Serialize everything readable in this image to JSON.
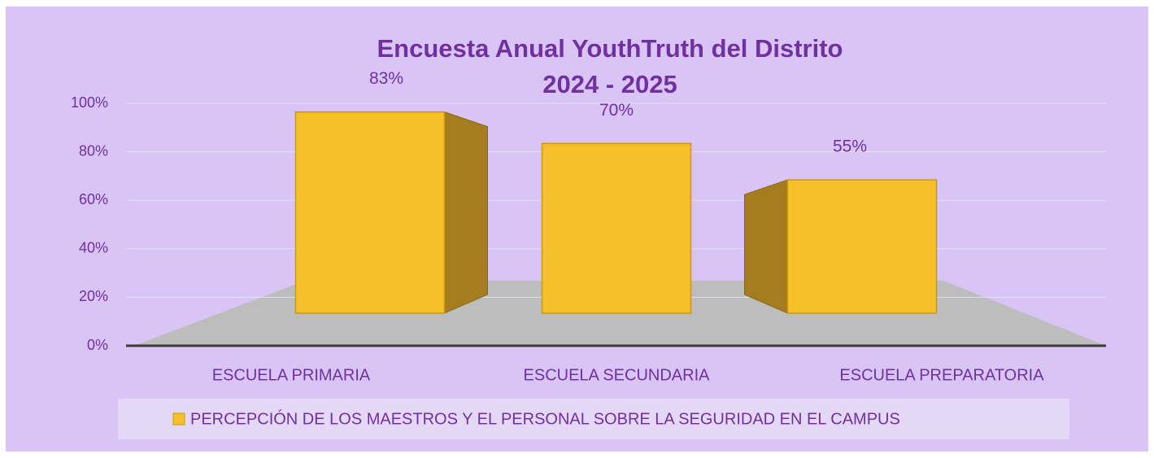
{
  "chart_data": {
    "type": "bar3d",
    "title": "Encuesta Anual YouthTruth del Distrito",
    "subtitle": "2024 - 2025",
    "categories": [
      "ESCUELA PRIMARIA",
      "ESCUELA SECUNDARIA",
      "ESCUELA PREPARATORIA"
    ],
    "series": [
      {
        "name": "PERCEPCIÓN DE LOS MAESTROS Y EL PERSONAL SOBRE LA SEGURIDAD EN EL CAMPUS",
        "color": "#f5c02a",
        "values": [
          83,
          70,
          55
        ],
        "value_labels": [
          "83%",
          "70%",
          "55%"
        ]
      }
    ],
    "ylim": [
      0,
      100
    ],
    "yticks": [
      {
        "value": 0,
        "label": "0%"
      },
      {
        "value": 20,
        "label": "20%"
      },
      {
        "value": 40,
        "label": "40%"
      },
      {
        "value": 60,
        "label": "60%"
      },
      {
        "value": 80,
        "label": "80%"
      },
      {
        "value": 100,
        "label": "100%"
      }
    ],
    "grid": true,
    "legend": "bottom"
  }
}
